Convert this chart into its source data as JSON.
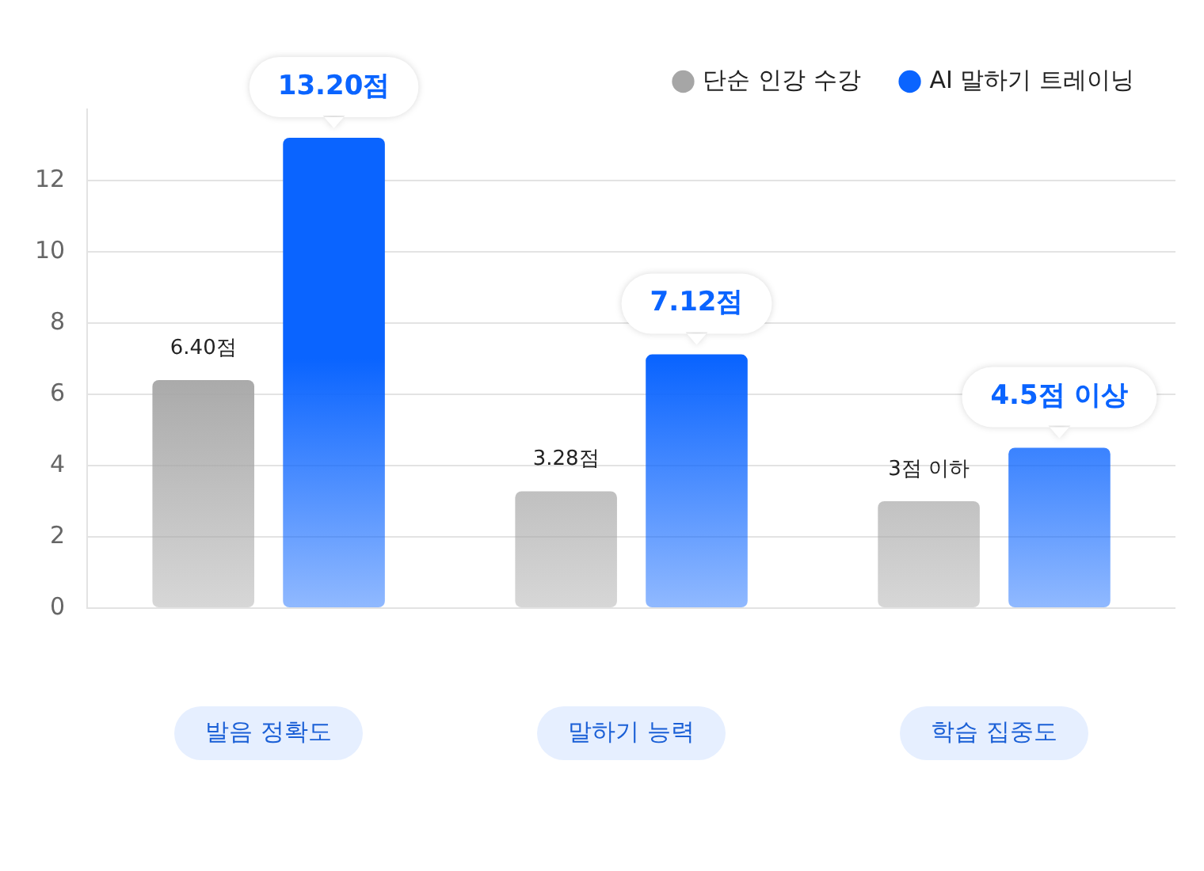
{
  "chart_data": {
    "type": "bar",
    "categories": [
      "발음 정확도",
      "말하기 능력",
      "학습 집중도"
    ],
    "series": [
      {
        "name": "단순 인강 수강",
        "color": "#a6a6a6",
        "values": [
          6.4,
          3.28,
          3
        ],
        "value_labels": [
          "6.40점",
          "3.28점",
          "3점 이하"
        ]
      },
      {
        "name": "AI 말하기 트레이닝",
        "color": "#0a64ff",
        "values": [
          13.2,
          7.12,
          4.5
        ],
        "value_labels": [
          "13.20점",
          "7.12점",
          "4.5점 이상"
        ]
      }
    ],
    "ylim": [
      0,
      14
    ],
    "yticks": [
      0,
      2,
      4,
      6,
      8,
      10,
      12
    ],
    "grid": "y",
    "legend": "top right"
  }
}
